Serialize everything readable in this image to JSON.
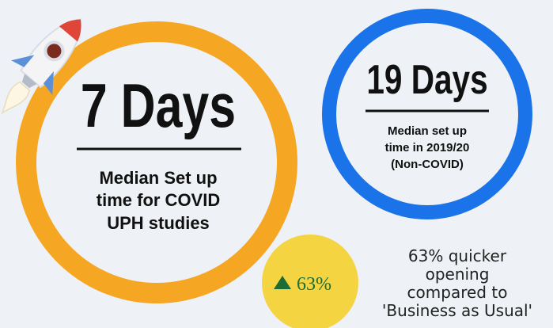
{
  "main_stat": {
    "headline": "7 Days",
    "lines": [
      "Median Set up",
      "time for COVID",
      "UPH studies"
    ]
  },
  "comparison_stat": {
    "headline": "19 Days",
    "lines": [
      "Median set up",
      "time in 2019/20",
      "(Non-COVID)"
    ]
  },
  "badge": {
    "text": "63%"
  },
  "note": {
    "lines": [
      "63% quicker",
      "opening",
      "compared to",
      "'Business as Usual'"
    ]
  }
}
